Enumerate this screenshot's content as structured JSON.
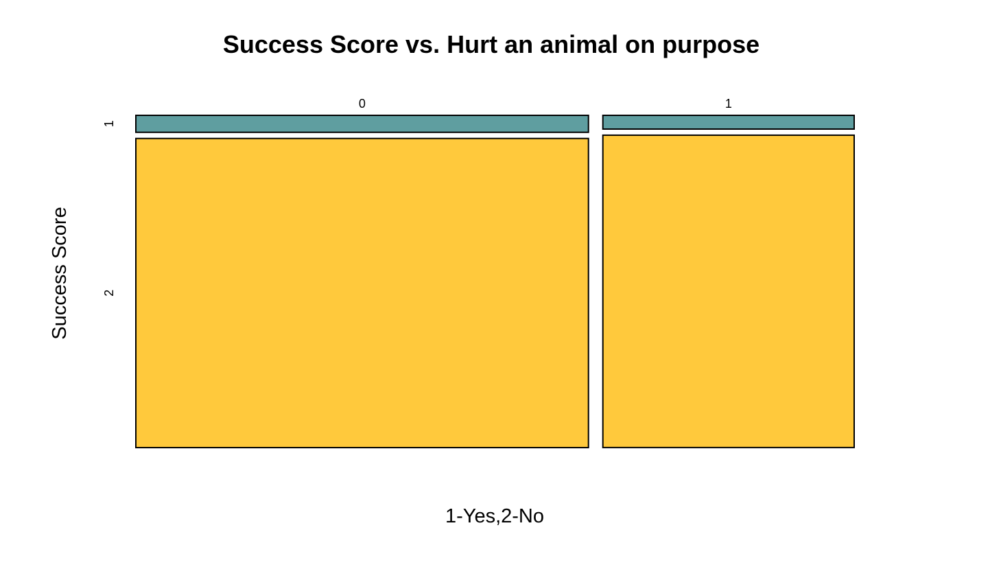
{
  "chart_data": {
    "type": "mosaic",
    "title": "Success Score vs. Hurt an animal on purpose",
    "xlabel": "1-Yes,2-No",
    "ylabel": "Success Score",
    "x_categories": [
      "0",
      "1"
    ],
    "y_categories": [
      "1",
      "2"
    ],
    "x_proportions": [
      0.643,
      0.357
    ],
    "y_proportions_within_x": [
      [
        0.052,
        0.948
      ],
      [
        0.042,
        0.958
      ]
    ],
    "colors": {
      "1": "#5F9EA0",
      "2": "#FFC93C"
    },
    "grid": false,
    "legend": "none"
  }
}
